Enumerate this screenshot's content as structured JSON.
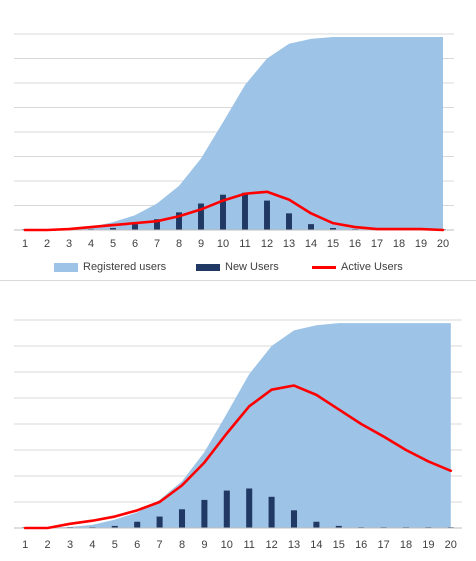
{
  "colors": {
    "registered": "#9dc3e6",
    "new_users": "#203864",
    "active": "#ff0000",
    "grid": "#d9d9d9",
    "axis": "#bfbfbf",
    "tick_text": "#404040"
  },
  "legend": {
    "registered": "Registered users",
    "new_users": "New Users",
    "active": "Active Users"
  },
  "chart_data": [
    {
      "type": "area",
      "title": "",
      "xlabel": "",
      "ylabel": "",
      "x": [
        1,
        2,
        3,
        4,
        5,
        6,
        7,
        8,
        9,
        10,
        11,
        12,
        13,
        14,
        15,
        16,
        17,
        18,
        19,
        20
      ],
      "ylim": [
        0,
        200
      ],
      "grid": true,
      "legend_position": "bottom",
      "series": [
        {
          "name": "Registered users",
          "type": "area",
          "values": [
            0,
            0.5,
            1,
            3,
            8,
            15,
            27,
            45,
            73,
            110,
            148,
            175,
            190,
            195,
            197,
            197,
            197,
            197,
            197,
            197
          ]
        },
        {
          "name": "New Users",
          "type": "bar",
          "values": [
            0,
            0,
            0,
            0,
            2,
            6,
            11,
            18,
            27,
            36,
            38,
            30,
            17,
            6,
            2,
            0,
            0,
            0,
            0,
            0
          ]
        },
        {
          "name": "Active Users",
          "type": "line",
          "values": [
            0,
            0,
            1,
            3,
            5,
            7,
            9,
            14,
            21,
            30,
            37,
            39,
            31,
            17,
            7,
            3,
            1,
            1,
            1,
            0
          ]
        }
      ]
    },
    {
      "type": "area",
      "title": "",
      "xlabel": "",
      "ylabel": "",
      "x": [
        1,
        2,
        3,
        4,
        5,
        6,
        7,
        8,
        9,
        10,
        11,
        12,
        13,
        14,
        15,
        16,
        17,
        18,
        19,
        20
      ],
      "ylim": [
        0,
        200
      ],
      "grid": true,
      "legend_position": "none",
      "series": [
        {
          "name": "Registered users",
          "type": "area",
          "values": [
            0,
            0.5,
            1,
            3,
            8,
            15,
            27,
            45,
            73,
            110,
            148,
            175,
            190,
            195,
            197,
            197,
            197,
            197,
            197,
            197
          ]
        },
        {
          "name": "New Users",
          "type": "bar",
          "values": [
            0,
            0,
            0,
            0,
            2,
            6,
            11,
            18,
            27,
            36,
            38,
            30,
            17,
            6,
            2,
            0,
            0,
            0,
            0,
            0
          ]
        },
        {
          "name": "Active Users",
          "type": "line",
          "values": [
            0,
            0,
            4,
            7,
            11,
            17,
            25,
            41,
            63,
            91,
            117,
            133,
            137,
            128,
            114,
            100,
            88,
            75,
            64,
            55
          ]
        }
      ]
    }
  ]
}
